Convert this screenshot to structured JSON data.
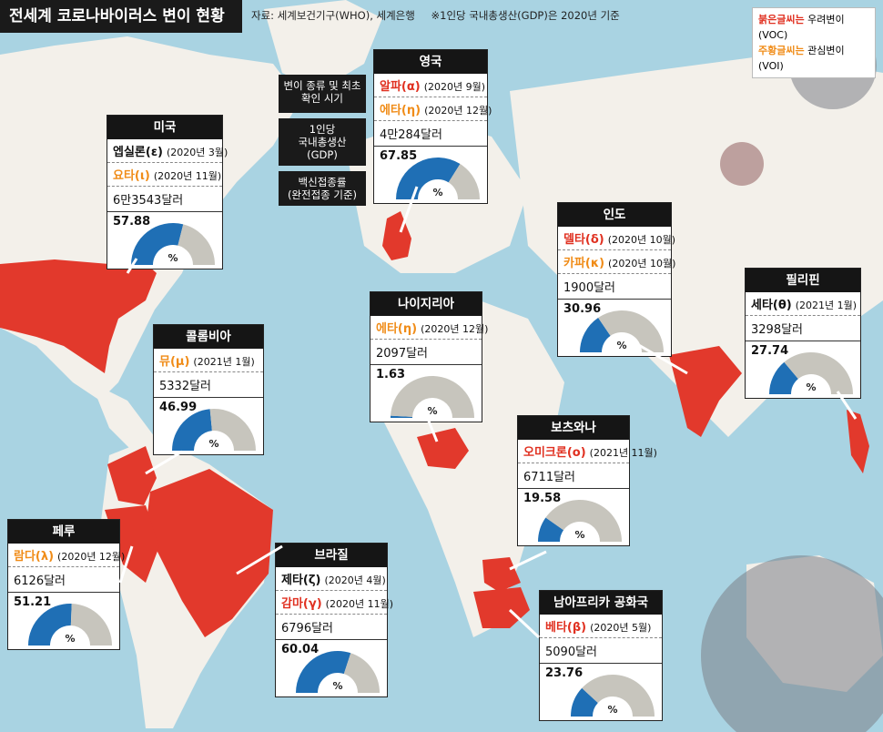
{
  "title": "전세계 코로나바이러스 변이 현황",
  "source": [
    "자료: 세계보건기구(WHO), 세계은행",
    "※1인당 국내총생산(GDP)은 2020년 기준"
  ],
  "legend": {
    "voc_key": "붉은글씨는",
    "voc_text": "우려변이(VOC)",
    "voi_key": "주황글씨는",
    "voi_text": "관심변이(VOI)",
    "voc_color": "#e03020",
    "voi_color": "#f08c18"
  },
  "row_labels": {
    "variant": "변이 종류 및 최초 확인 시기",
    "gdp_line1": "1인당",
    "gdp_line2": "국내총생산(GDP)",
    "vax_line1": "백신접종률",
    "vax_line2": "(완전접종 기준)"
  },
  "percent_symbol": "%",
  "countries": [
    {
      "name": "미국",
      "variants": [
        {
          "name": "엡실론(ε)",
          "date": "(2020년 3월)",
          "type": "none"
        },
        {
          "name": "요타(ι)",
          "date": "(2020년 11월)",
          "type": "voi"
        }
      ],
      "gdp": "6만3543달러",
      "vax": "57.88",
      "vax_pct": 57.88
    },
    {
      "name": "영국",
      "variants": [
        {
          "name": "알파(α)",
          "date": "(2020년 9월)",
          "type": "voc"
        },
        {
          "name": "에타(η)",
          "date": "(2020년 12월)",
          "type": "voi"
        }
      ],
      "gdp": "4만284달러",
      "vax": "67.85",
      "vax_pct": 67.85
    },
    {
      "name": "콜롬비아",
      "variants": [
        {
          "name": "뮤(μ)",
          "date": "(2021년 1월)",
          "type": "voi"
        }
      ],
      "gdp": "5332달러",
      "vax": "46.99",
      "vax_pct": 46.99
    },
    {
      "name": "나이지리아",
      "variants": [
        {
          "name": "에타(η)",
          "date": "(2020년 12월)",
          "type": "voi"
        }
      ],
      "gdp": "2097달러",
      "vax": "1.63",
      "vax_pct": 1.63
    },
    {
      "name": "인도",
      "variants": [
        {
          "name": "델타(δ)",
          "date": "(2020년 10월)",
          "type": "voc"
        },
        {
          "name": "카파(κ)",
          "date": "(2020년 10월)",
          "type": "voi"
        }
      ],
      "gdp": "1900달러",
      "vax": "30.96",
      "vax_pct": 30.96
    },
    {
      "name": "필리핀",
      "variants": [
        {
          "name": "세타(θ)",
          "date": "(2021년 1월)",
          "type": "none"
        }
      ],
      "gdp": "3298달러",
      "vax": "27.74",
      "vax_pct": 27.74
    },
    {
      "name": "보츠와나",
      "variants": [
        {
          "name": "오미크론(ο)",
          "date": "(2021년 11월)",
          "type": "voc"
        }
      ],
      "gdp": "6711달러",
      "vax": "19.58",
      "vax_pct": 19.58
    },
    {
      "name": "페루",
      "variants": [
        {
          "name": "람다(λ)",
          "date": "(2020년 12월)",
          "type": "voi"
        }
      ],
      "gdp": "6126달러",
      "vax": "51.21",
      "vax_pct": 51.21
    },
    {
      "name": "브라질",
      "variants": [
        {
          "name": "제타(ζ)",
          "date": "(2020년 4월)",
          "type": "none"
        },
        {
          "name": "감마(γ)",
          "date": "(2020년 11월)",
          "type": "voc"
        }
      ],
      "gdp": "6796달러",
      "vax": "60.04",
      "vax_pct": 60.04
    },
    {
      "name": "남아프리카 공화국",
      "variants": [
        {
          "name": "베타(β)",
          "date": "(2020년 5월)",
          "type": "voc"
        }
      ],
      "gdp": "5090달러",
      "vax": "23.76",
      "vax_pct": 23.76
    }
  ]
}
